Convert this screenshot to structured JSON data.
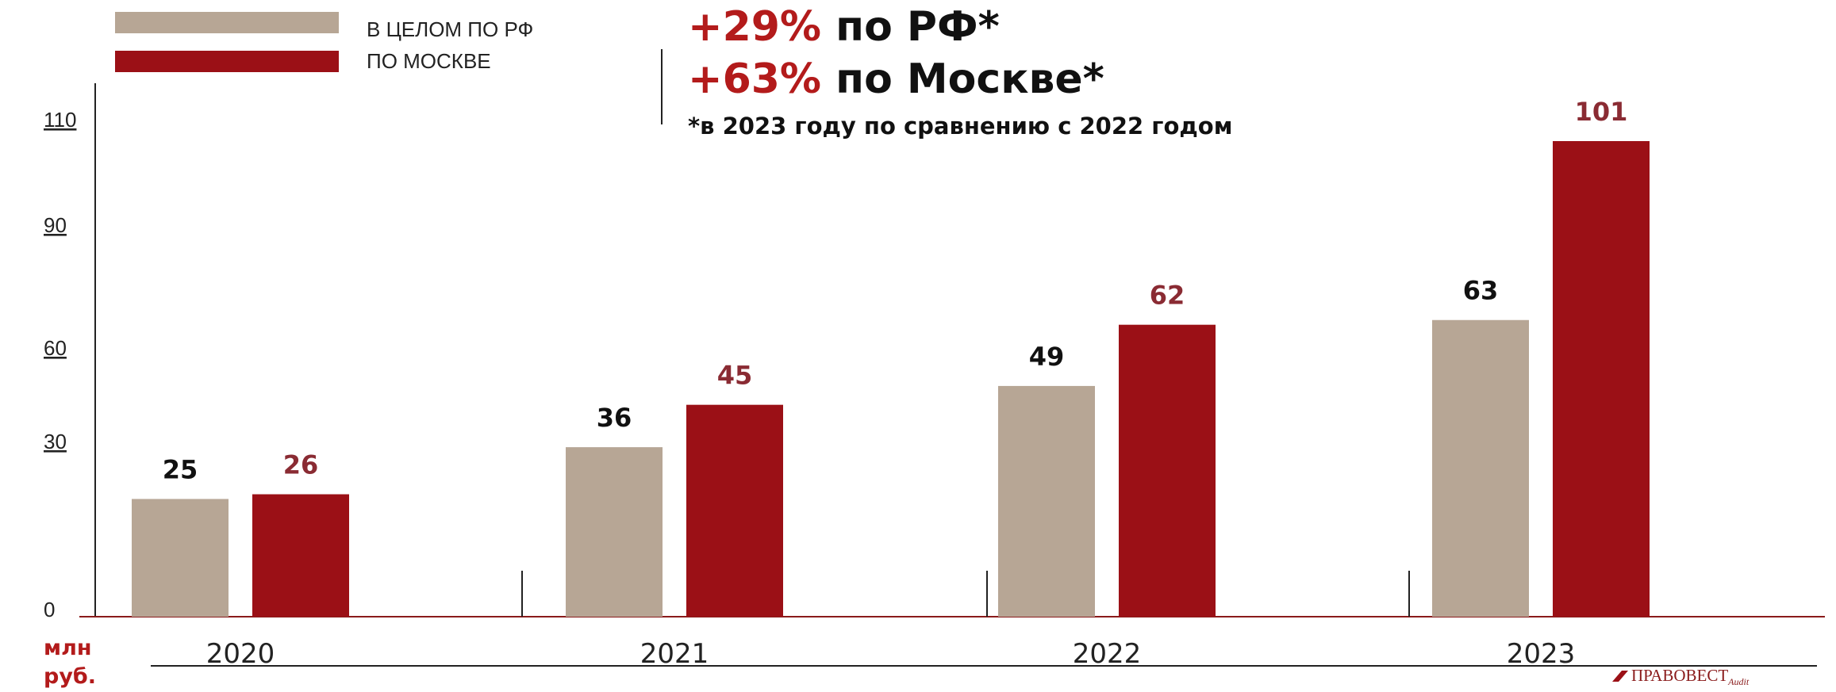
{
  "legend": {
    "items": [
      {
        "label": "В ЦЕЛОМ ПО РФ",
        "color": "#b7a695"
      },
      {
        "label": "ПО МОСКВЕ",
        "color": "#9b1016"
      }
    ]
  },
  "headline": {
    "line1_pct": "+29%",
    "line1_text": "по РФ*",
    "line2_pct": "+63%",
    "line2_text": "по Москве*",
    "footnote": "*в 2023 году по сравнению с 2022 годом",
    "accent_color": "#b31b1b"
  },
  "unit_label": {
    "line1": "млн",
    "line2": "руб."
  },
  "logo_text": "ПРАВОВЕСТ",
  "logo_sub": "Audit",
  "chart_data": {
    "type": "bar",
    "categories": [
      "2020",
      "2021",
      "2022",
      "2023"
    ],
    "y_ticks": [
      0,
      30,
      60,
      90,
      110
    ],
    "series": [
      {
        "name": "В ЦЕЛОМ ПО РФ",
        "values": [
          25,
          36,
          49,
          63
        ],
        "color": "#b7a695",
        "label_color": "#111111"
      },
      {
        "name": "ПО МОСКВЕ",
        "values": [
          26,
          45,
          62,
          101
        ],
        "color": "#9b1016",
        "label_color": "#8a2b33"
      }
    ]
  }
}
